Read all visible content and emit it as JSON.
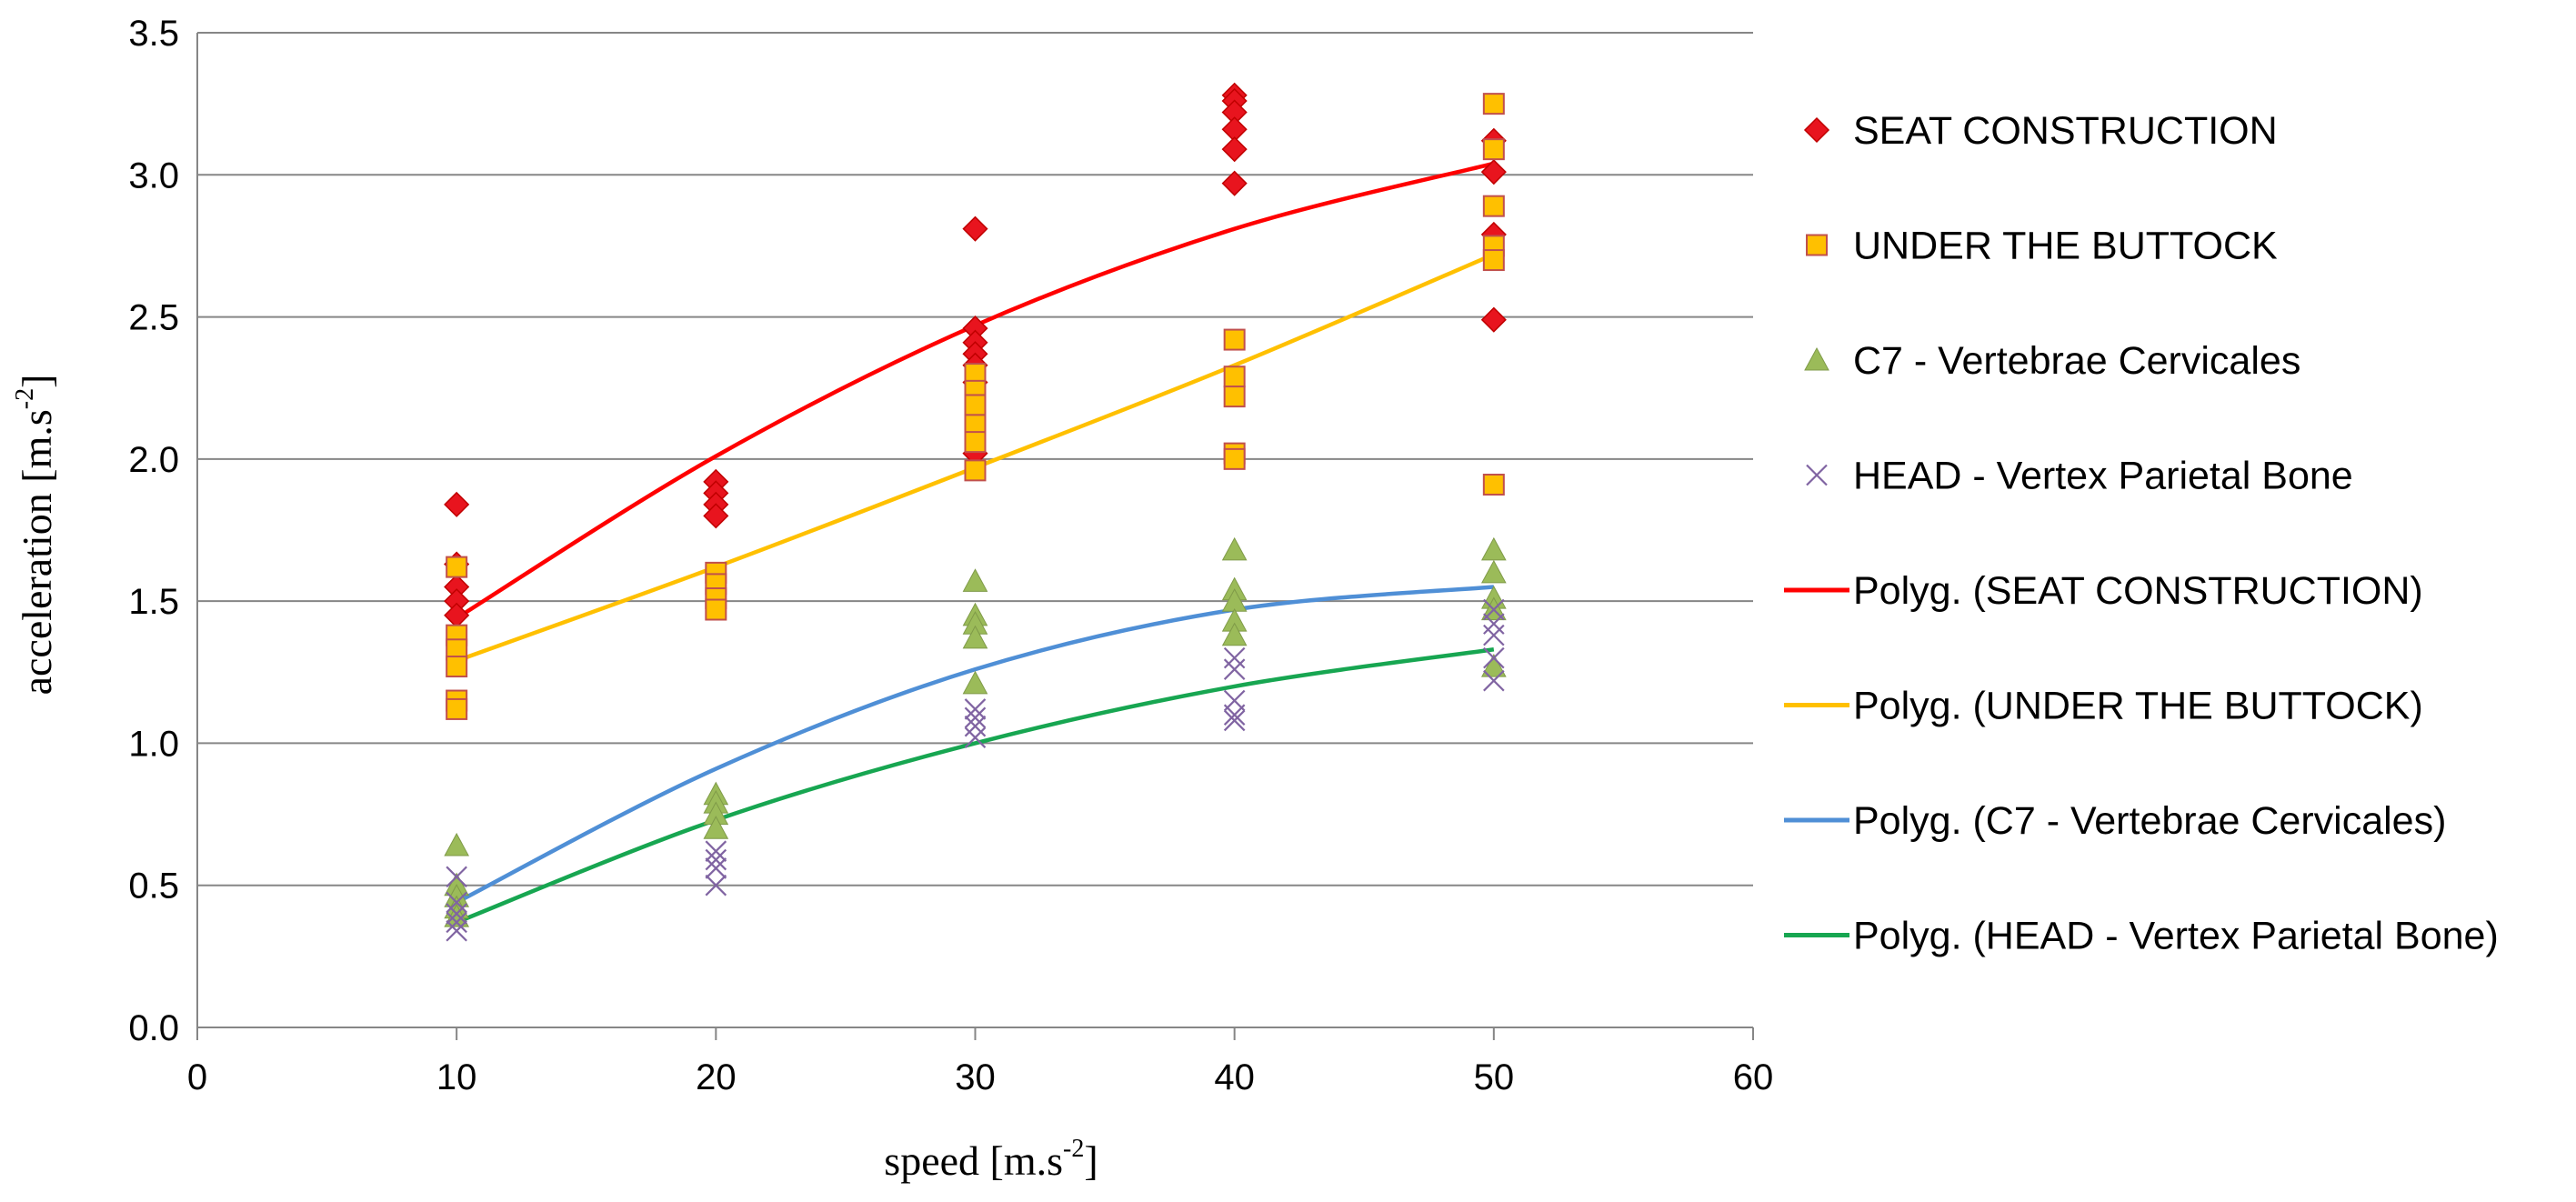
{
  "chart_data": {
    "type": "scatter",
    "title": "",
    "xlabel": {
      "base": "speed [m.s",
      "sup": "-2",
      "close": "]"
    },
    "ylabel": {
      "base": "acceleration [m.s",
      "sup": "-2",
      "close": "]"
    },
    "xlim": [
      0,
      60
    ],
    "ylim": [
      0,
      3.5
    ],
    "x_ticks": [
      "0",
      "10",
      "20",
      "30",
      "40",
      "50",
      "60"
    ],
    "y_ticks": [
      "0.0",
      "0.5",
      "1.0",
      "1.5",
      "2.0",
      "2.5",
      "3.0",
      "3.5"
    ],
    "grid": "horizontal",
    "legend_position": "right",
    "series": [
      {
        "name": "SEAT CONSTRUCTION",
        "marker": "diamond",
        "color": "#e8141e",
        "points": [
          [
            10,
            1.84
          ],
          [
            10,
            1.63
          ],
          [
            10,
            1.55
          ],
          [
            10,
            1.5
          ],
          [
            10,
            1.45
          ],
          [
            20,
            1.92
          ],
          [
            20,
            1.88
          ],
          [
            20,
            1.84
          ],
          [
            20,
            1.8
          ],
          [
            30,
            2.81
          ],
          [
            30,
            2.46
          ],
          [
            30,
            2.41
          ],
          [
            30,
            2.37
          ],
          [
            30,
            2.33
          ],
          [
            30,
            2.27
          ],
          [
            30,
            2.02
          ],
          [
            40,
            3.28
          ],
          [
            40,
            3.26
          ],
          [
            40,
            3.22
          ],
          [
            40,
            3.16
          ],
          [
            40,
            3.09
          ],
          [
            40,
            2.97
          ],
          [
            50,
            3.12
          ],
          [
            50,
            3.01
          ],
          [
            50,
            2.79
          ],
          [
            50,
            2.49
          ]
        ]
      },
      {
        "name": "UNDER THE BUTTOCK",
        "marker": "square",
        "color": "#ffc000",
        "points": [
          [
            10,
            1.62
          ],
          [
            10,
            1.38
          ],
          [
            10,
            1.33
          ],
          [
            10,
            1.27
          ],
          [
            10,
            1.15
          ],
          [
            10,
            1.12
          ],
          [
            20,
            1.6
          ],
          [
            20,
            1.56
          ],
          [
            20,
            1.51
          ],
          [
            20,
            1.47
          ],
          [
            30,
            2.3
          ],
          [
            30,
            2.24
          ],
          [
            30,
            2.19
          ],
          [
            30,
            2.12
          ],
          [
            30,
            2.06
          ],
          [
            30,
            1.96
          ],
          [
            40,
            2.42
          ],
          [
            40,
            2.29
          ],
          [
            40,
            2.22
          ],
          [
            40,
            2.02
          ],
          [
            40,
            2.0
          ],
          [
            50,
            3.25
          ],
          [
            50,
            3.09
          ],
          [
            50,
            2.89
          ],
          [
            50,
            2.75
          ],
          [
            50,
            2.7
          ],
          [
            50,
            1.91
          ]
        ]
      },
      {
        "name": "C7 - Vertebrae Cervicales",
        "marker": "triangle",
        "color": "#9bbb59",
        "points": [
          [
            10,
            0.64
          ],
          [
            10,
            0.5
          ],
          [
            10,
            0.46
          ],
          [
            10,
            0.42
          ],
          [
            10,
            0.39
          ],
          [
            20,
            0.82
          ],
          [
            20,
            0.79
          ],
          [
            20,
            0.75
          ],
          [
            20,
            0.7
          ],
          [
            30,
            1.57
          ],
          [
            30,
            1.45
          ],
          [
            30,
            1.42
          ],
          [
            30,
            1.37
          ],
          [
            30,
            1.21
          ],
          [
            40,
            1.68
          ],
          [
            40,
            1.54
          ],
          [
            40,
            1.5
          ],
          [
            40,
            1.43
          ],
          [
            40,
            1.38
          ],
          [
            50,
            1.68
          ],
          [
            50,
            1.6
          ],
          [
            50,
            1.51
          ],
          [
            50,
            1.47
          ],
          [
            50,
            1.27
          ]
        ]
      },
      {
        "name": "HEAD - Vertex Parietal Bone",
        "marker": "x",
        "color": "#8064a2",
        "points": [
          [
            10,
            0.53
          ],
          [
            10,
            0.44
          ],
          [
            10,
            0.4
          ],
          [
            10,
            0.37
          ],
          [
            10,
            0.34
          ],
          [
            20,
            0.62
          ],
          [
            20,
            0.59
          ],
          [
            20,
            0.56
          ],
          [
            20,
            0.5
          ],
          [
            30,
            1.12
          ],
          [
            30,
            1.09
          ],
          [
            30,
            1.06
          ],
          [
            30,
            1.02
          ],
          [
            40,
            1.3
          ],
          [
            40,
            1.26
          ],
          [
            40,
            1.15
          ],
          [
            40,
            1.1
          ],
          [
            40,
            1.08
          ],
          [
            50,
            1.47
          ],
          [
            50,
            1.42
          ],
          [
            50,
            1.38
          ],
          [
            50,
            1.3
          ],
          [
            50,
            1.22
          ]
        ]
      },
      {
        "name": "Polyg. (SEAT CONSTRUCTION)",
        "type": "line",
        "color": "#ff0000",
        "x": [
          10,
          20,
          30,
          40,
          50
        ],
        "values": [
          1.44,
          2.01,
          2.47,
          2.81,
          3.04
        ]
      },
      {
        "name": "Polyg. (UNDER THE BUTTOCK)",
        "type": "line",
        "color": "#ffc000",
        "x": [
          10,
          20,
          30,
          40,
          50
        ],
        "values": [
          1.29,
          1.62,
          1.97,
          2.33,
          2.72
        ]
      },
      {
        "name": "Polyg. (C7 - Vertebrae Cervicales)",
        "type": "line",
        "color": "#4f8fd6",
        "x": [
          10,
          20,
          30,
          40,
          50
        ],
        "values": [
          0.44,
          0.91,
          1.26,
          1.47,
          1.55
        ]
      },
      {
        "name": "Polyg. (HEAD - Vertex Parietal Bone)",
        "type": "line",
        "color": "#17a651",
        "x": [
          10,
          20,
          30,
          40,
          50
        ],
        "values": [
          0.37,
          0.73,
          1.0,
          1.2,
          1.33
        ]
      }
    ]
  },
  "colors": {
    "grid": "#868686",
    "axis": "#868686",
    "marker_stroke_diamond": "#c00000",
    "marker_stroke_square": "#c0504d",
    "marker_stroke_triangle": "#7f9a48"
  }
}
